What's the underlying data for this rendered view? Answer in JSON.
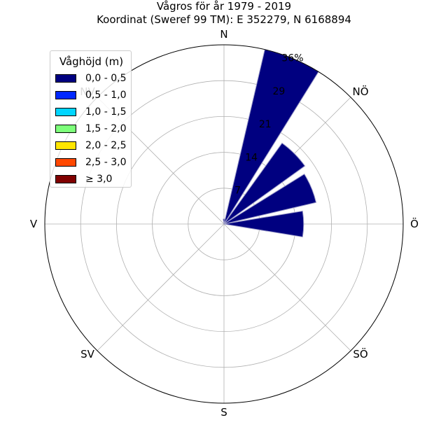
{
  "chart_data": {
    "type": "windrose",
    "title": "Vågros för år 1979 - 2019",
    "subtitle": "Koordinat (Sweref 99 TM): E 352279, N 6168894",
    "directions": [
      "N",
      "NÖ",
      "Ö",
      "SÖ",
      "S",
      "SV",
      "V",
      "NV"
    ],
    "radial_ticks": [
      "7",
      "14",
      "21",
      "29",
      "36%"
    ],
    "radial_max": 36,
    "sectors_deg": [
      0,
      22.5,
      45,
      67.5,
      90,
      112.5,
      135,
      157.5,
      180,
      202.5,
      225,
      247.5,
      270,
      292.5,
      315,
      337.5
    ],
    "legend_title": "Våghöjd (m)",
    "bins": [
      {
        "label": "0,0 - 0,5",
        "color": "#000080"
      },
      {
        "label": "0,5 - 1,0",
        "color": "#0028ff"
      },
      {
        "label": "1,0 - 1,5",
        "color": "#00d5ff"
      },
      {
        "label": "1,5 - 2,0",
        "color": "#7dff7a"
      },
      {
        "label": "2,0 - 2,5",
        "color": "#ffe600"
      },
      {
        "label": "2,5 - 3,0",
        "color": "#ff4800"
      },
      {
        "label": "≥ 3,0",
        "color": "#800000"
      }
    ],
    "values": [
      [
        1.0,
        0,
        0,
        0,
        0,
        0,
        0
      ],
      [
        36.0,
        0,
        0,
        0,
        0,
        0,
        0
      ],
      [
        20.0,
        0,
        0,
        0,
        0,
        0,
        0
      ],
      [
        19.0,
        0,
        0,
        0,
        0,
        0,
        0
      ],
      [
        16.0,
        0,
        0,
        0,
        0,
        0,
        0
      ],
      [
        0,
        0,
        0,
        0,
        0,
        0,
        0
      ],
      [
        0,
        0,
        0,
        0,
        0,
        0,
        0
      ],
      [
        0,
        0,
        0,
        0,
        0,
        0,
        0
      ],
      [
        0,
        0,
        0,
        0,
        0,
        0,
        0
      ],
      [
        0,
        0,
        0,
        0,
        0,
        0,
        0
      ],
      [
        0,
        0,
        0,
        0,
        0,
        0,
        0
      ],
      [
        0,
        0,
        0,
        0,
        0,
        0,
        0
      ],
      [
        0,
        0,
        0,
        0,
        0,
        0,
        0
      ],
      [
        0,
        0,
        0,
        0,
        0,
        0,
        0
      ],
      [
        0,
        0,
        0,
        0,
        0,
        0,
        0
      ],
      [
        0,
        0,
        0,
        0,
        0,
        0,
        0
      ]
    ],
    "grid": true,
    "legend_position": "upper-left"
  }
}
